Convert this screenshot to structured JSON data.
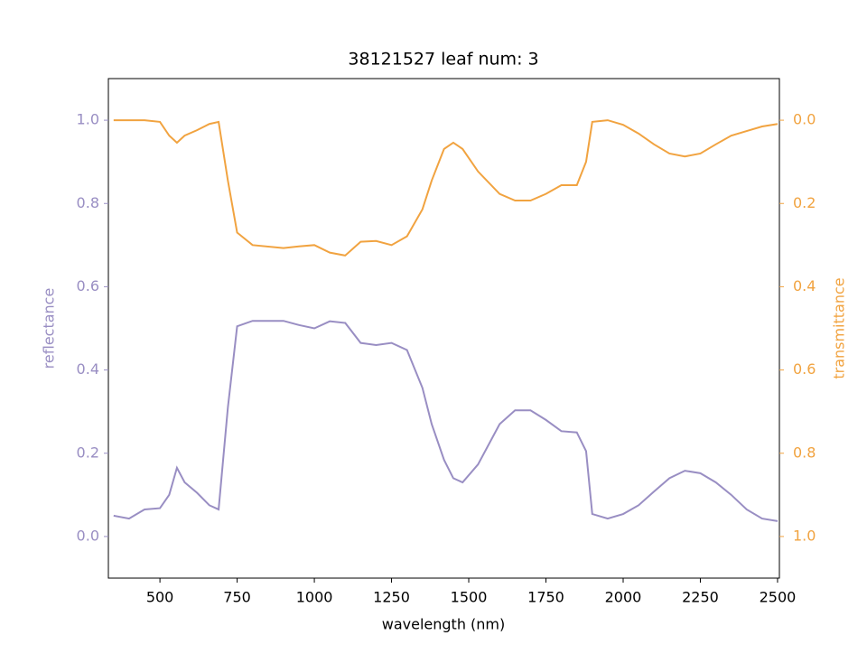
{
  "chart_data": {
    "type": "line",
    "title": "38121527 leaf num: 3",
    "xlabel": "wavelength (nm)",
    "ylabel": "reflectance",
    "y2label": "transmittance",
    "x": [
      350,
      400,
      450,
      500,
      530,
      555,
      580,
      620,
      660,
      690,
      720,
      750,
      800,
      900,
      950,
      1000,
      1050,
      1100,
      1150,
      1200,
      1250,
      1300,
      1350,
      1380,
      1420,
      1450,
      1480,
      1530,
      1600,
      1650,
      1700,
      1750,
      1800,
      1850,
      1880,
      1900,
      1950,
      2000,
      2050,
      2100,
      2150,
      2200,
      2250,
      2300,
      2350,
      2400,
      2450,
      2500
    ],
    "series": [
      {
        "name": "reflectance",
        "color": "#998ec3",
        "axis": "y",
        "values": [
          0.05,
          0.043,
          0.065,
          0.068,
          0.1,
          0.165,
          0.13,
          0.105,
          0.075,
          0.065,
          0.31,
          0.505,
          0.518,
          0.518,
          0.508,
          0.5,
          0.517,
          0.513,
          0.465,
          0.46,
          0.465,
          0.448,
          0.357,
          0.27,
          0.184,
          0.14,
          0.13,
          0.173,
          0.27,
          0.303,
          0.303,
          0.28,
          0.253,
          0.25,
          0.205,
          0.054,
          0.043,
          0.054,
          0.075,
          0.108,
          0.14,
          0.158,
          0.152,
          0.13,
          0.1,
          0.065,
          0.043,
          0.037
        ]
      },
      {
        "name": "transmittance",
        "color": "#f1a340",
        "axis": "y2",
        "values": [
          0.0,
          0.0,
          0.0,
          0.004,
          0.037,
          0.054,
          0.037,
          0.024,
          0.009,
          0.004,
          0.145,
          0.27,
          0.3,
          0.307,
          0.303,
          0.3,
          0.318,
          0.325,
          0.292,
          0.29,
          0.3,
          0.279,
          0.214,
          0.145,
          0.069,
          0.054,
          0.069,
          0.123,
          0.177,
          0.193,
          0.193,
          0.177,
          0.156,
          0.156,
          0.1,
          0.004,
          0.0,
          0.011,
          0.032,
          0.058,
          0.08,
          0.087,
          0.08,
          0.058,
          0.037,
          0.026,
          0.015,
          0.009
        ]
      }
    ],
    "xlim": [
      333,
      2506
    ],
    "xticks": [
      500,
      750,
      1000,
      1250,
      1500,
      1750,
      2000,
      2250,
      2500
    ],
    "ylim": [
      -0.1,
      1.1
    ],
    "yticks": [
      {
        "value": 0,
        "label": "0.0"
      },
      0.2,
      0.4,
      0.6,
      0.8,
      {
        "value": 1,
        "label": "1.0"
      }
    ],
    "y2lim": [
      1.1,
      -0.1
    ],
    "y2ticks": [
      {
        "value": 0,
        "label": "0.0"
      },
      0.2,
      0.4,
      0.6,
      0.8,
      {
        "value": 1,
        "label": "1.0"
      }
    ]
  }
}
